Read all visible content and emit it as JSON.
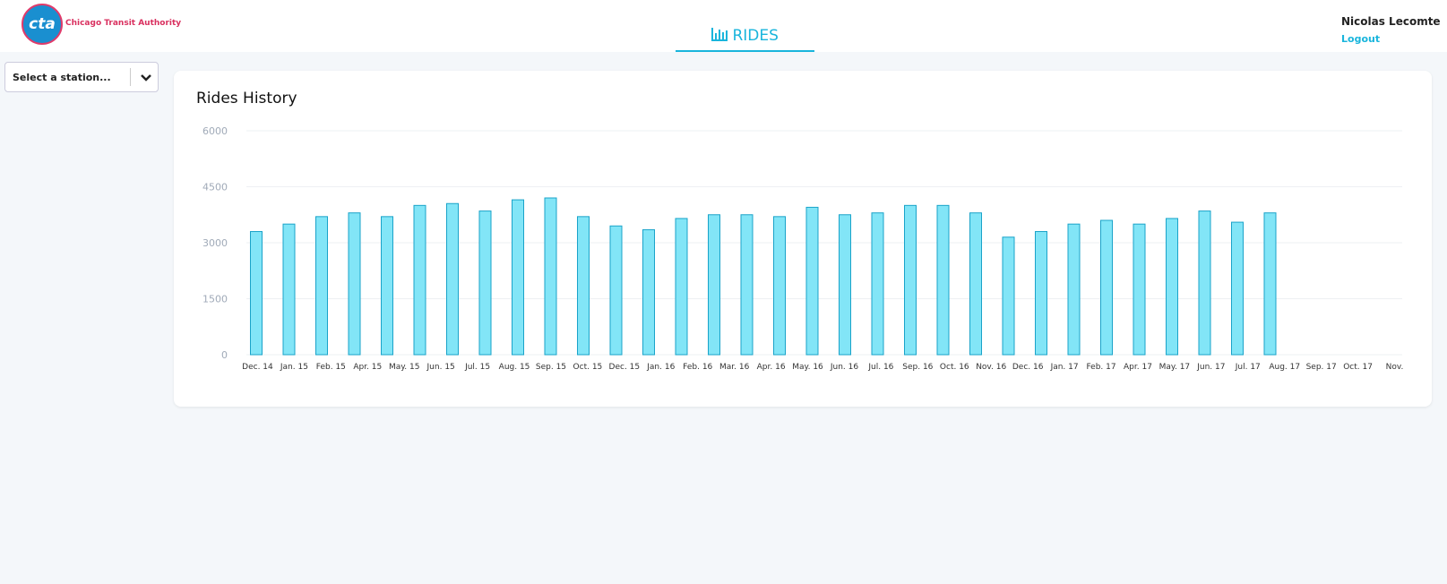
{
  "header": {
    "logo_text": "cta",
    "organization": "Chicago Transit Authority",
    "nav_item": "RIDES",
    "user_name": "Nicolas Lecomte",
    "logout": "Logout"
  },
  "station_select": {
    "placeholder": "Select a station..."
  },
  "chart_data": {
    "type": "bar",
    "title": "Rides History",
    "categories": [
      "Dec. 14",
      "Jan. 15",
      "Feb. 15",
      "Apr. 15",
      "May. 15",
      "Jun. 15",
      "Jul. 15",
      "Aug. 15",
      "Sep. 15",
      "Oct. 15",
      "Dec. 15",
      "Jan. 16",
      "Feb. 16",
      "Mar. 16",
      "Apr. 16",
      "May. 16",
      "Jun. 16",
      "Jul. 16",
      "Sep. 16",
      "Oct. 16",
      "Nov. 16",
      "Dec. 16",
      "Jan. 17",
      "Feb. 17",
      "Apr. 17",
      "May. 17",
      "Jun. 17",
      "Jul. 17",
      "Aug. 17",
      "Sep. 17",
      "Oct. 17",
      "Nov."
    ],
    "values": [
      3300,
      3500,
      3700,
      3800,
      3700,
      4000,
      4050,
      3850,
      4150,
      4200,
      3700,
      3450,
      3350,
      3650,
      3750,
      3750,
      3700,
      3950,
      3750,
      3800,
      4000,
      4000,
      3800,
      3150,
      3300,
      3500,
      3600,
      3500,
      3650,
      3850,
      3550,
      3800
    ],
    "color": "#82e5f7",
    "ylim": [
      0,
      6000
    ],
    "yticks": [
      0,
      1500,
      3000,
      4500,
      6000
    ],
    "grid": true
  }
}
